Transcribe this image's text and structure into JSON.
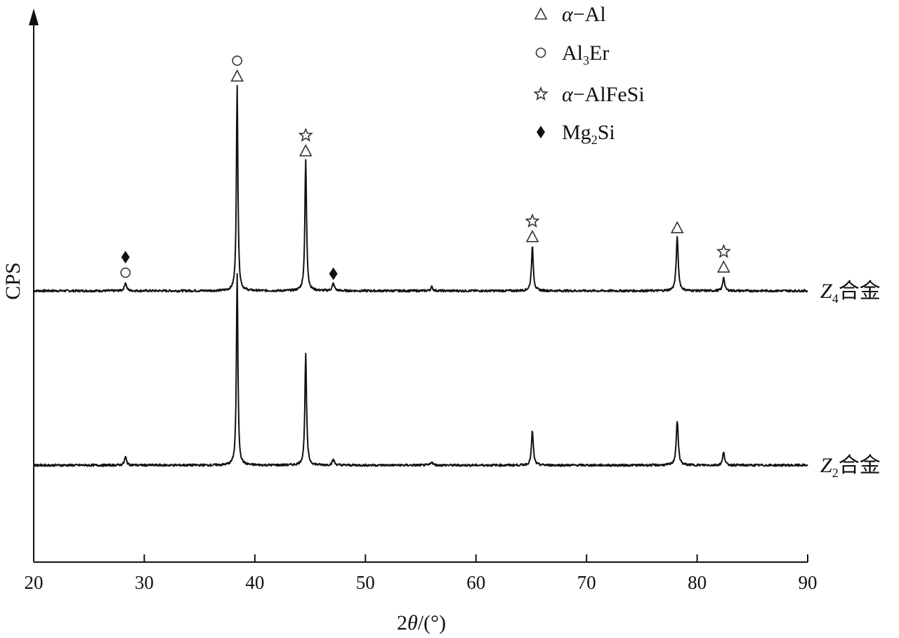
{
  "chart_data": {
    "type": "line",
    "xlabel": {
      "prefix": "2",
      "symbol": "θ",
      "suffix": "/(°)"
    },
    "ylabel": "CPS",
    "xlim": [
      20,
      90
    ],
    "ylim": [
      0,
      1
    ],
    "xticks": [
      20,
      30,
      40,
      50,
      60,
      70,
      80,
      90
    ],
    "xtick_labels": [
      "20",
      "30",
      "40",
      "50",
      "60",
      "70",
      "80",
      "90"
    ],
    "grid": false,
    "legend_position": "top-right",
    "legend": [
      {
        "marker": "triangle",
        "label": {
          "base": "α−Al",
          "sub": "",
          "rest": ""
        }
      },
      {
        "marker": "circle",
        "label": {
          "base": "Al",
          "sub": "3",
          "rest": "Er"
        }
      },
      {
        "marker": "star",
        "label": {
          "base": "α−AlFeSi",
          "sub": "",
          "rest": ""
        }
      },
      {
        "marker": "diamond",
        "label": {
          "base": "Mg",
          "sub": "2",
          "rest": "Si"
        }
      }
    ],
    "series": [
      {
        "name": {
          "base": "Z",
          "sub": "4",
          "rest": "合金"
        },
        "baseline": 0.49,
        "peaks": [
          {
            "x": 28.3,
            "y": 0.505,
            "w": 0.22
          },
          {
            "x": 38.4,
            "y": 0.86,
            "w": 0.16
          },
          {
            "x": 44.6,
            "y": 0.725,
            "w": 0.18
          },
          {
            "x": 47.1,
            "y": 0.503,
            "w": 0.24
          },
          {
            "x": 56.0,
            "y": 0.497,
            "w": 0.22
          },
          {
            "x": 65.1,
            "y": 0.57,
            "w": 0.2
          },
          {
            "x": 78.2,
            "y": 0.586,
            "w": 0.22
          },
          {
            "x": 82.4,
            "y": 0.515,
            "w": 0.2
          }
        ],
        "annotations": [
          {
            "x": 28.3,
            "markers": [
              "circle",
              "diamond"
            ]
          },
          {
            "x": 38.4,
            "markers": [
              "triangle",
              "circle"
            ]
          },
          {
            "x": 44.6,
            "markers": [
              "triangle",
              "star"
            ]
          },
          {
            "x": 47.1,
            "markers": [
              "diamond"
            ]
          },
          {
            "x": 65.1,
            "markers": [
              "triangle",
              "star"
            ]
          },
          {
            "x": 78.2,
            "markers": [
              "triangle"
            ]
          },
          {
            "x": 82.4,
            "markers": [
              "triangle",
              "star"
            ]
          }
        ]
      },
      {
        "name": {
          "base": "Z",
          "sub": "2",
          "rest": "合金"
        },
        "baseline": 0.175,
        "peaks": [
          {
            "x": 28.3,
            "y": 0.19,
            "w": 0.22
          },
          {
            "x": 38.4,
            "y": 0.52,
            "w": 0.16
          },
          {
            "x": 44.6,
            "y": 0.375,
            "w": 0.18
          },
          {
            "x": 47.1,
            "y": 0.185,
            "w": 0.24
          },
          {
            "x": 56.0,
            "y": 0.181,
            "w": 0.22
          },
          {
            "x": 65.1,
            "y": 0.237,
            "w": 0.2
          },
          {
            "x": 78.2,
            "y": 0.255,
            "w": 0.22
          },
          {
            "x": 82.4,
            "y": 0.2,
            "w": 0.2
          }
        ],
        "annotations": []
      }
    ]
  }
}
